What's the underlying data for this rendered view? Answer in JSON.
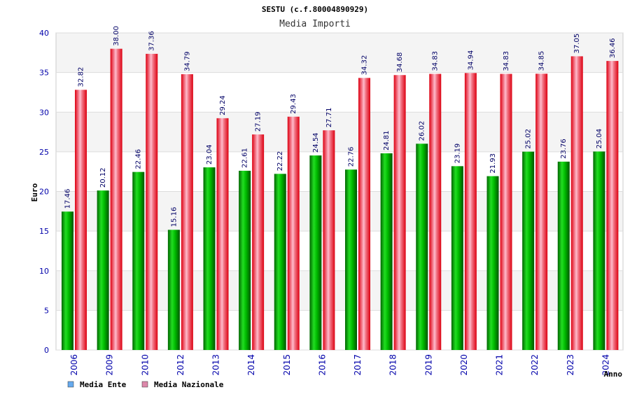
{
  "chart_data": {
    "type": "bar",
    "title": "SESTU (c.f.80004890929)",
    "subtitle": "Media Importi",
    "ylabel": "Euro",
    "xlabel": "Anno",
    "ylim": [
      0,
      40
    ],
    "yticks": [
      0,
      5,
      10,
      15,
      20,
      25,
      30,
      35,
      40
    ],
    "categories": [
      "2006",
      "2009",
      "2010",
      "2012",
      "2013",
      "2014",
      "2015",
      "2016",
      "2017",
      "2018",
      "2019",
      "2020",
      "2021",
      "2022",
      "2023",
      "2024"
    ],
    "series": [
      {
        "name": "Media Ente",
        "color": "#00aa00",
        "legend_color": "#66aaee",
        "values": [
          17.46,
          20.12,
          22.46,
          15.16,
          23.04,
          22.61,
          22.22,
          24.54,
          22.76,
          24.81,
          26.02,
          23.19,
          21.93,
          25.02,
          23.76,
          25.04
        ],
        "labels": [
          "17.46",
          "20.12",
          "22.46",
          "15.16",
          "23.04",
          "22.61",
          "22.22",
          "24.54",
          "22.76",
          "24.81",
          "26.02",
          "23.19",
          "21.93",
          "25.02",
          "23.76",
          "25.04"
        ]
      },
      {
        "name": "Media Nazionale",
        "color": "#ee0022",
        "legend_color": "#dd88aa",
        "values": [
          32.82,
          38.0,
          37.36,
          34.79,
          29.24,
          27.19,
          29.43,
          27.71,
          34.32,
          34.68,
          34.83,
          34.94,
          34.83,
          34.85,
          37.05,
          36.46
        ],
        "labels": [
          "32.82",
          "38.00",
          "37.36",
          "34.79",
          "29.24",
          "27.19",
          "29.43",
          "27.71",
          "34.32",
          "34.68",
          "34.83",
          "34.94",
          "34.83",
          "34.85",
          "37.05",
          "36.46"
        ]
      }
    ],
    "grid": true,
    "legend_position": "bottom-left"
  }
}
